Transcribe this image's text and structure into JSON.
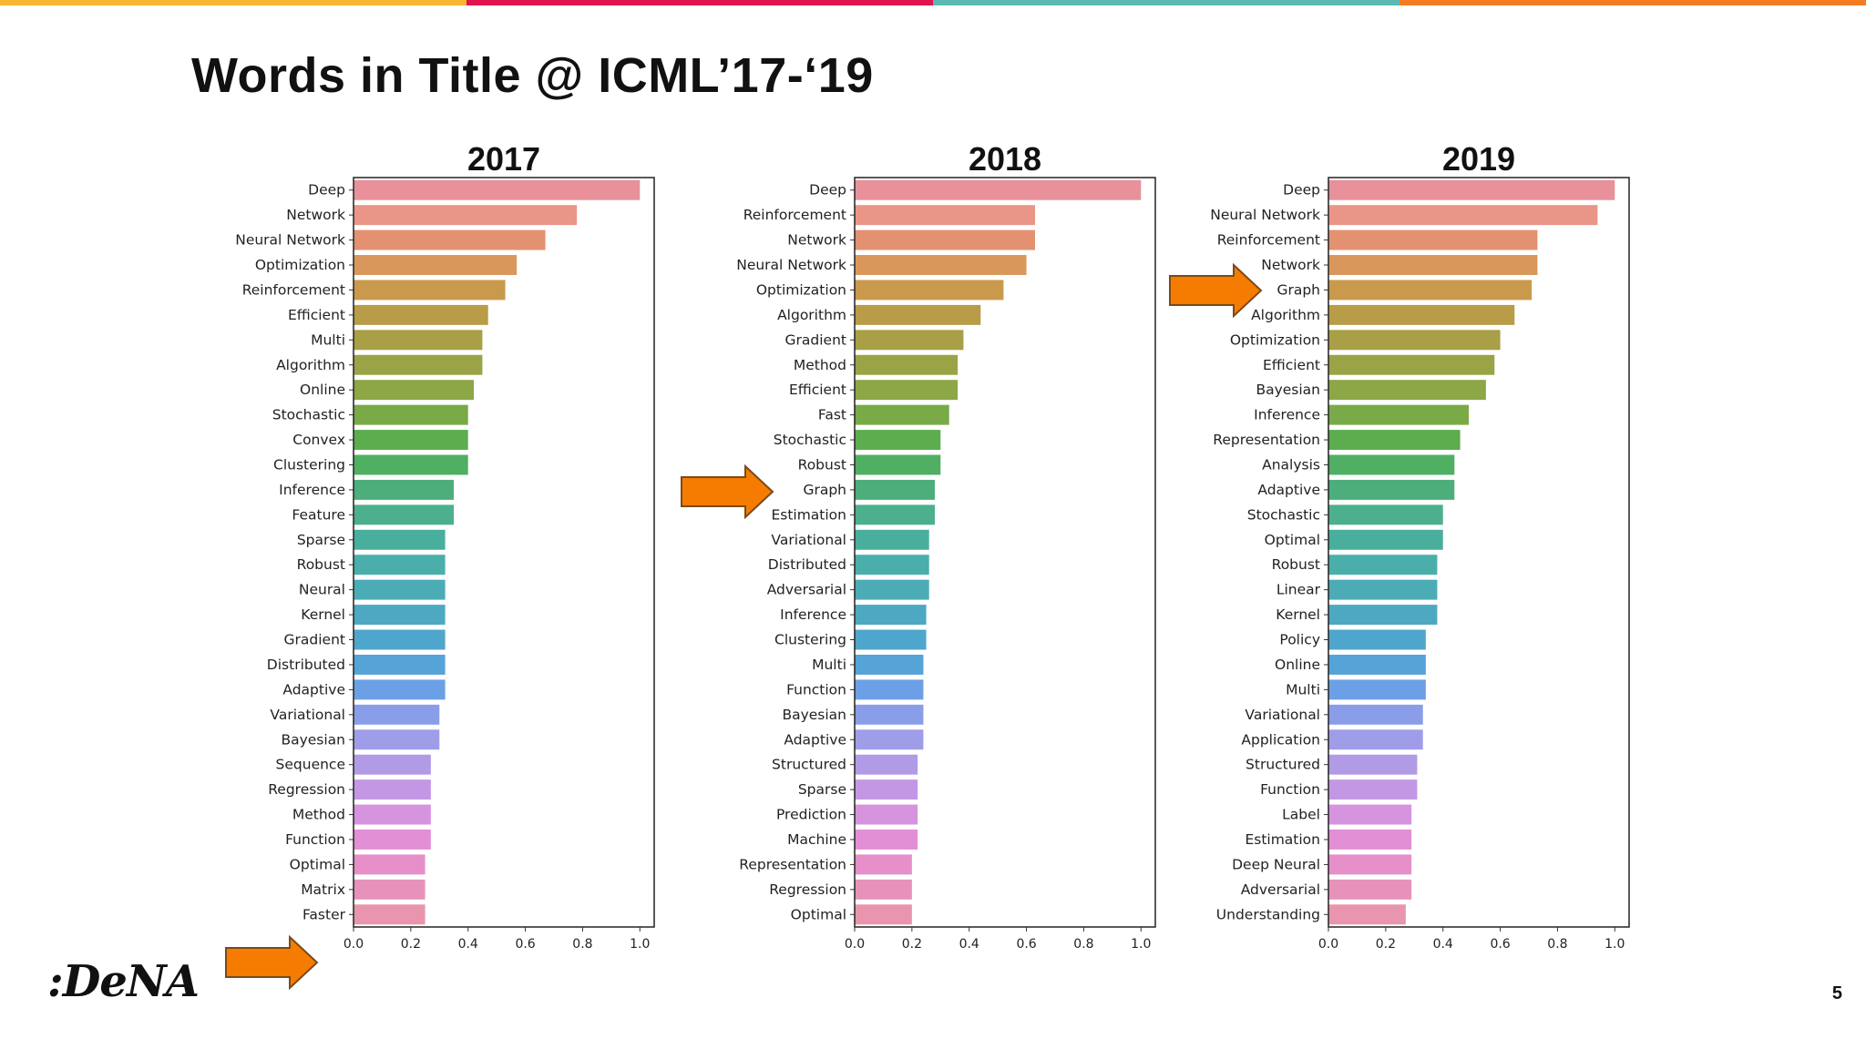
{
  "slide": {
    "title": "Words in Title @ ICML’17-‘19",
    "page_number": "5",
    "logo_text": ":DeNA",
    "top_bar_colors": [
      "#f7b731",
      "#e0144e",
      "#5bb9b3",
      "#f57b20"
    ],
    "arrow_color": "#f57c00"
  },
  "chart_data": [
    {
      "type": "bar",
      "orientation": "horizontal",
      "title": "2017",
      "xlim": [
        0.0,
        1.0
      ],
      "xticks": [
        "0.0",
        "0.2",
        "0.4",
        "0.6",
        "0.8",
        "1.0"
      ],
      "categories": [
        "Deep",
        "Network",
        "Neural Network",
        "Optimization",
        "Reinforcement",
        "Efficient",
        "Multi",
        "Algorithm",
        "Online",
        "Stochastic",
        "Convex",
        "Clustering",
        "Inference",
        "Feature",
        "Sparse",
        "Robust",
        "Neural",
        "Kernel",
        "Gradient",
        "Distributed",
        "Adaptive",
        "Variational",
        "Bayesian",
        "Sequence",
        "Regression",
        "Method",
        "Function",
        "Optimal",
        "Matrix",
        "Faster"
      ],
      "values": [
        1.0,
        0.78,
        0.67,
        0.57,
        0.53,
        0.47,
        0.45,
        0.45,
        0.42,
        0.4,
        0.4,
        0.4,
        0.35,
        0.35,
        0.32,
        0.32,
        0.32,
        0.32,
        0.32,
        0.32,
        0.32,
        0.3,
        0.3,
        0.27,
        0.27,
        0.27,
        0.27,
        0.25,
        0.25,
        0.25
      ]
    },
    {
      "type": "bar",
      "orientation": "horizontal",
      "title": "2018",
      "xlim": [
        0.0,
        1.0
      ],
      "xticks": [
        "0.0",
        "0.2",
        "0.4",
        "0.6",
        "0.8",
        "1.0"
      ],
      "categories": [
        "Deep",
        "Reinforcement",
        "Network",
        "Neural Network",
        "Optimization",
        "Algorithm",
        "Gradient",
        "Method",
        "Efficient",
        "Fast",
        "Stochastic",
        "Robust",
        "Graph",
        "Estimation",
        "Variational",
        "Distributed",
        "Adversarial",
        "Inference",
        "Clustering",
        "Multi",
        "Function",
        "Bayesian",
        "Adaptive",
        "Structured",
        "Sparse",
        "Prediction",
        "Machine",
        "Representation",
        "Regression",
        "Optimal"
      ],
      "values": [
        1.0,
        0.63,
        0.63,
        0.6,
        0.52,
        0.44,
        0.38,
        0.36,
        0.36,
        0.33,
        0.3,
        0.3,
        0.28,
        0.28,
        0.26,
        0.26,
        0.26,
        0.25,
        0.25,
        0.24,
        0.24,
        0.24,
        0.24,
        0.22,
        0.22,
        0.22,
        0.22,
        0.2,
        0.2,
        0.2
      ]
    },
    {
      "type": "bar",
      "orientation": "horizontal",
      "title": "2019",
      "xlim": [
        0.0,
        1.0
      ],
      "xticks": [
        "0.0",
        "0.2",
        "0.4",
        "0.6",
        "0.8",
        "1.0"
      ],
      "categories": [
        "Deep",
        "Neural Network",
        "Reinforcement",
        "Network",
        "Graph",
        "Algorithm",
        "Optimization",
        "Efficient",
        "Bayesian",
        "Inference",
        "Representation",
        "Analysis",
        "Adaptive",
        "Stochastic",
        "Optimal",
        "Robust",
        "Linear",
        "Kernel",
        "Policy",
        "Online",
        "Multi",
        "Variational",
        "Application",
        "Structured",
        "Function",
        "Label",
        "Estimation",
        "Deep Neural",
        "Adversarial",
        "Understanding"
      ],
      "values": [
        1.0,
        0.94,
        0.73,
        0.73,
        0.71,
        0.65,
        0.6,
        0.58,
        0.55,
        0.49,
        0.46,
        0.44,
        0.44,
        0.4,
        0.4,
        0.38,
        0.38,
        0.38,
        0.34,
        0.34,
        0.34,
        0.33,
        0.33,
        0.31,
        0.31,
        0.29,
        0.29,
        0.29,
        0.29,
        0.27
      ]
    }
  ]
}
